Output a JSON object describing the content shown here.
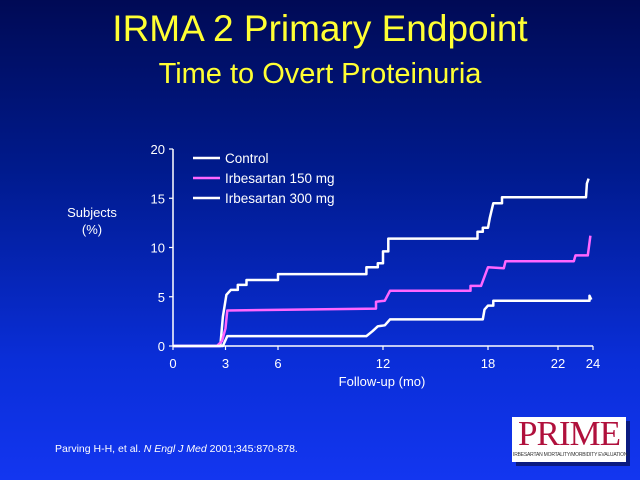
{
  "title": "IRMA 2 Primary Endpoint",
  "subtitle": "Time to Overt Proteinuria",
  "citation": {
    "authors": "Parving H-H, et al.",
    "journal": "N Engl J Med",
    "details": "2001;345:870-878."
  },
  "logo": {
    "name": "PRIME",
    "tagline": "IRBESARTAN MORTALITY/MORBIDITY EVALUATION"
  },
  "chart_data": {
    "type": "line",
    "step": true,
    "title": "Time to Overt Proteinuria",
    "xlabel": "Follow-up (mo)",
    "ylabel_lines": [
      "Subjects",
      "(%)"
    ],
    "xlim": [
      0,
      24
    ],
    "ylim": [
      0,
      20
    ],
    "xticks": [
      0,
      3,
      6,
      12,
      18,
      22,
      24
    ],
    "yticks": [
      0,
      5,
      10,
      15,
      20
    ],
    "grid": false,
    "legend_position": "top-left",
    "colors": {
      "axis": "#ffffff",
      "control": "#ffffff",
      "irb150": "#ff66ff",
      "irb300": "#ffffff"
    },
    "series": [
      {
        "name": "Control",
        "key": "control",
        "points": [
          [
            0,
            0
          ],
          [
            2.7,
            0
          ],
          [
            2.85,
            3
          ],
          [
            3.05,
            5.2
          ],
          [
            3.3,
            5.7
          ],
          [
            3.7,
            5.7
          ],
          [
            3.7,
            6.2
          ],
          [
            4.2,
            6.2
          ],
          [
            4.2,
            6.7
          ],
          [
            6.0,
            6.7
          ],
          [
            6.0,
            7.3
          ],
          [
            11.05,
            7.3
          ],
          [
            11.05,
            8.0
          ],
          [
            11.7,
            8.0
          ],
          [
            11.7,
            8.4
          ],
          [
            12.0,
            8.4
          ],
          [
            12.0,
            9.6
          ],
          [
            12.3,
            9.6
          ],
          [
            12.3,
            10.9
          ],
          [
            17.4,
            10.9
          ],
          [
            17.4,
            11.6
          ],
          [
            17.7,
            11.6
          ],
          [
            17.7,
            12.0
          ],
          [
            18.0,
            12.0
          ],
          [
            18.1,
            13.0
          ],
          [
            18.3,
            14.5
          ],
          [
            18.8,
            14.5
          ],
          [
            18.8,
            15.1
          ],
          [
            23.6,
            15.1
          ],
          [
            23.65,
            16.5
          ],
          [
            23.75,
            17.0
          ]
        ]
      },
      {
        "name": "Irbesartan 150 mg",
        "key": "irb150",
        "points": [
          [
            0,
            0
          ],
          [
            2.5,
            0
          ],
          [
            2.8,
            0.5
          ],
          [
            3.0,
            1.8
          ],
          [
            3.1,
            3.6
          ],
          [
            11.6,
            3.8
          ],
          [
            11.6,
            4.5
          ],
          [
            12.1,
            4.6
          ],
          [
            12.4,
            5.6
          ],
          [
            17.0,
            5.6
          ],
          [
            17.0,
            6.1
          ],
          [
            17.6,
            6.1
          ],
          [
            18.0,
            8.0
          ],
          [
            18.9,
            7.9
          ],
          [
            19.0,
            8.6
          ],
          [
            22.9,
            8.6
          ],
          [
            23.0,
            9.2
          ],
          [
            23.7,
            9.2
          ],
          [
            23.85,
            11.2
          ]
        ]
      },
      {
        "name": "Irbesartan 300 mg",
        "key": "irb300",
        "points": [
          [
            0,
            0
          ],
          [
            2.85,
            0
          ],
          [
            3.1,
            1.0
          ],
          [
            11.05,
            1.0
          ],
          [
            11.4,
            1.5
          ],
          [
            11.7,
            2.0
          ],
          [
            12.1,
            2.1
          ],
          [
            12.4,
            2.7
          ],
          [
            17.7,
            2.7
          ],
          [
            17.8,
            3.7
          ],
          [
            18.0,
            4.1
          ],
          [
            18.3,
            4.1
          ],
          [
            18.3,
            4.6
          ],
          [
            23.8,
            4.6
          ],
          [
            23.8,
            5.1
          ],
          [
            23.9,
            4.7
          ]
        ]
      }
    ]
  }
}
